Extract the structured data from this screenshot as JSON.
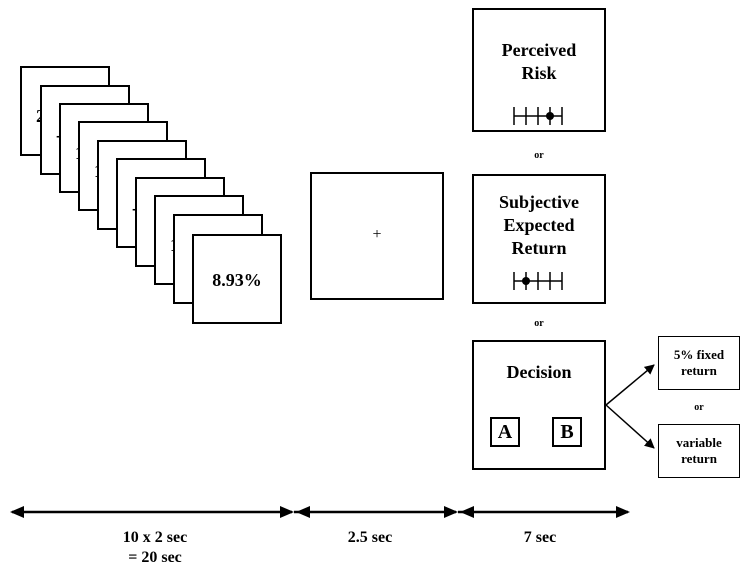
{
  "stimulus_stack": {
    "peek_labels": [
      "2",
      "-",
      "1",
      "1",
      "",
      "-",
      "",
      "1",
      "",
      ""
    ],
    "final_value": "8.93%"
  },
  "fixation": {
    "symbol": "+"
  },
  "rating_panels": {
    "risk": {
      "title_line1": "Perceived",
      "title_line2": "Risk"
    },
    "or1": "or",
    "return": {
      "title_line1": "Subjective",
      "title_line2": "Expected",
      "title_line3": "Return"
    },
    "or2": "or",
    "decision": {
      "title": "Decision",
      "option_a": "A",
      "option_b": "B"
    }
  },
  "outcomes": {
    "fixed_line1": "5% fixed",
    "fixed_line2": "return",
    "or": "or",
    "variable_line1": "variable",
    "variable_line2": "return"
  },
  "timeline": {
    "phase1_line1": "10 x 2 sec",
    "phase1_line2": "= 20 sec",
    "phase2": "2.5 sec",
    "phase3": "7 sec"
  },
  "scales": {
    "risk_marker_tick": 3,
    "return_marker_tick": 1,
    "tick_count": 5
  }
}
